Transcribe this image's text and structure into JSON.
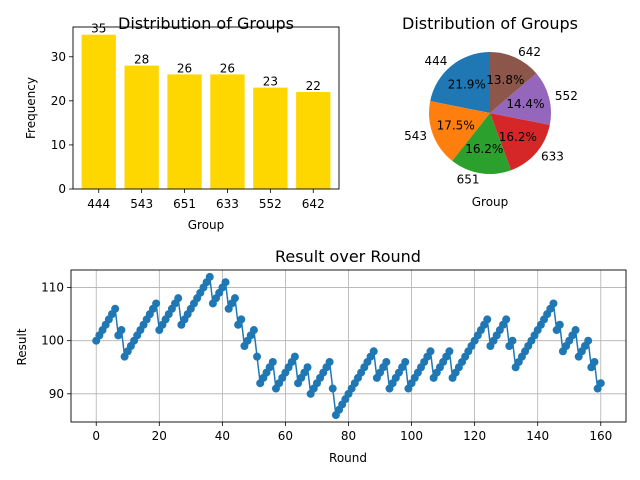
{
  "chart_data": [
    {
      "type": "bar",
      "title": "Distribution of Groups",
      "xlabel": "Group",
      "ylabel": "Frequency",
      "categories": [
        "444",
        "543",
        "651",
        "633",
        "552",
        "642"
      ],
      "values": [
        35,
        28,
        26,
        26,
        23,
        22
      ],
      "ylim": [
        0,
        36.75
      ],
      "yticks": [
        0,
        10,
        20,
        30
      ],
      "grid": false,
      "color": "#ffd700"
    },
    {
      "type": "pie",
      "title": "Distribution of Groups",
      "xlabel": "Group",
      "categories": [
        "444",
        "543",
        "651",
        "633",
        "552",
        "642"
      ],
      "values": [
        35,
        28,
        26,
        26,
        23,
        22
      ],
      "percent_labels": [
        "21.9%",
        "17.5%",
        "16.2%",
        "16.2%",
        "14.4%",
        "13.8%"
      ],
      "colors": [
        "#1f77b4",
        "#ff7f0e",
        "#2ca02c",
        "#d62728",
        "#9467bd",
        "#8c564b"
      ],
      "start_angle_deg": 90
    },
    {
      "type": "line",
      "title": "Result over Round",
      "xlabel": "Round",
      "ylabel": "Result",
      "xlim": [
        -8,
        168
      ],
      "ylim": [
        84.7,
        113.3
      ],
      "xticks": [
        0,
        20,
        40,
        60,
        80,
        100,
        120,
        140,
        160
      ],
      "yticks": [
        90,
        100,
        110
      ],
      "grid": true,
      "color": "#1f77b4",
      "x_start": 0,
      "y": [
        100,
        101,
        102,
        103,
        104,
        105,
        106,
        101,
        102,
        97,
        98,
        99,
        100,
        101,
        102,
        103,
        104,
        105,
        106,
        107,
        102,
        103,
        104,
        105,
        106,
        107,
        108,
        103,
        104,
        105,
        106,
        107,
        108,
        109,
        110,
        111,
        112,
        107,
        108,
        109,
        110,
        111,
        106,
        107,
        108,
        103,
        104,
        99,
        100,
        101,
        102,
        97,
        92,
        93,
        94,
        95,
        96,
        91,
        92,
        93,
        94,
        95,
        96,
        97,
        92,
        93,
        94,
        95,
        90,
        91,
        92,
        93,
        94,
        95,
        96,
        91,
        86,
        87,
        88,
        89,
        90,
        91,
        92,
        93,
        94,
        95,
        96,
        97,
        98,
        93,
        94,
        95,
        96,
        91,
        92,
        93,
        94,
        95,
        96,
        91,
        92,
        93,
        94,
        95,
        96,
        97,
        98,
        93,
        94,
        95,
        96,
        97,
        98,
        93,
        94,
        95,
        96,
        97,
        98,
        99,
        100,
        101,
        102,
        103,
        104,
        99,
        100,
        101,
        102,
        103,
        104,
        99,
        100,
        95,
        96,
        97,
        98,
        99,
        100,
        101,
        102,
        103,
        104,
        105,
        106,
        107,
        102,
        103,
        98,
        99,
        100,
        101,
        102,
        97,
        98,
        99,
        100,
        95,
        96,
        91,
        92
      ]
    }
  ]
}
